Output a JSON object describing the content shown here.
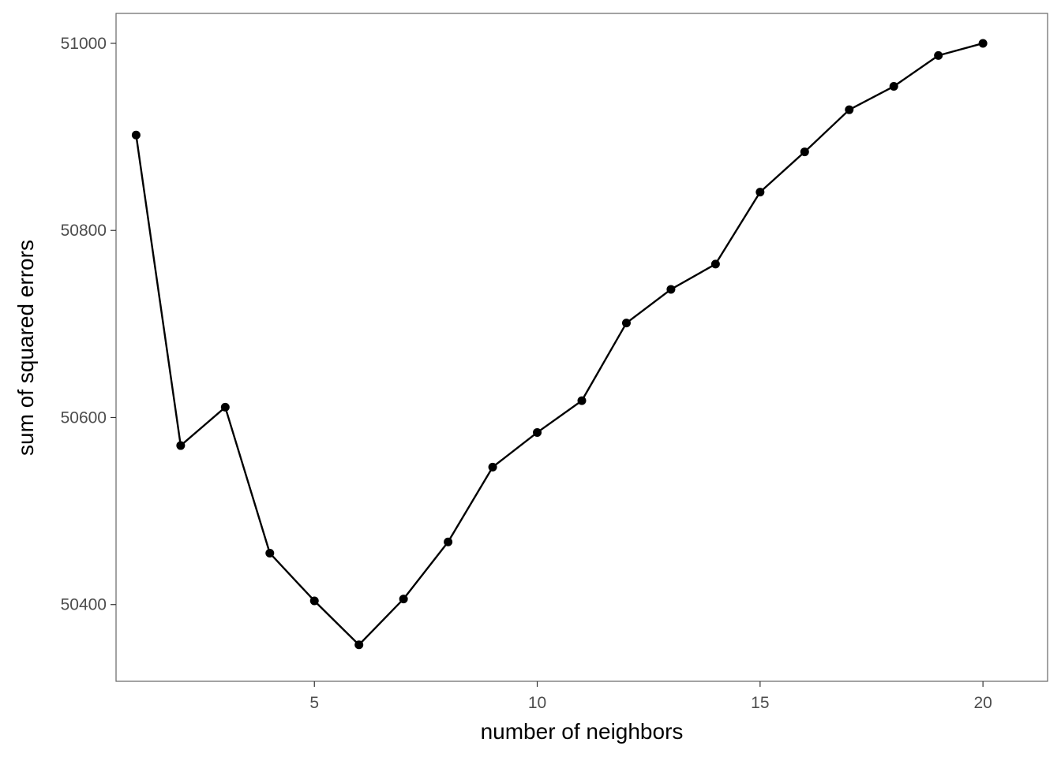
{
  "chart_data": {
    "type": "line",
    "title": "",
    "xlabel": "number of neighbors",
    "ylabel": "sum of squared errors",
    "xlim": [
      0.55,
      21.45
    ],
    "ylim": [
      50318,
      51032
    ],
    "x_ticks": [
      5,
      10,
      15,
      20
    ],
    "y_ticks": [
      50400,
      50600,
      50800,
      51000
    ],
    "grid": false,
    "legend": "none",
    "series": [
      {
        "color": "#000000",
        "marker": "circle",
        "x": [
          1,
          2,
          3,
          4,
          5,
          6,
          7,
          8,
          9,
          10,
          11,
          12,
          13,
          14,
          15,
          16,
          17,
          18,
          19,
          20
        ],
        "y": [
          50902,
          50570,
          50611,
          50455,
          50404,
          50357,
          50406,
          50467,
          50547,
          50584,
          50618,
          50701,
          50737,
          50764,
          50841,
          50884,
          50929,
          50954,
          50987,
          51000
        ]
      }
    ]
  }
}
